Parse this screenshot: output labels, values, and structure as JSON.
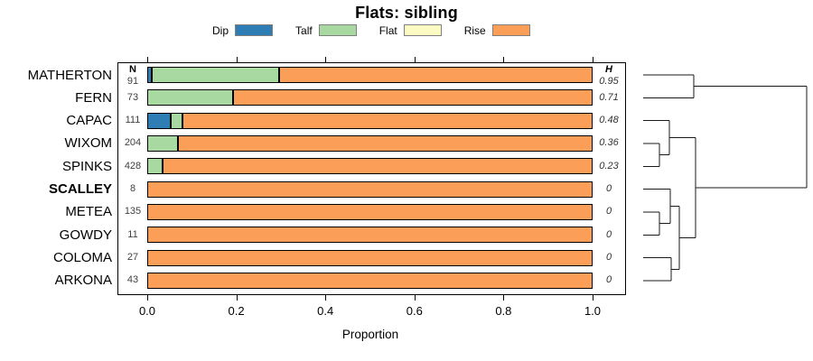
{
  "title": "Flats: sibling",
  "columns": {
    "n_header": "N",
    "h_header": "H"
  },
  "legend": [
    {
      "label": "Dip",
      "color": "#2e7eb5"
    },
    {
      "label": "Talf",
      "color": "#a7d9a0"
    },
    {
      "label": "Flat",
      "color": "#fbfbc3"
    },
    {
      "label": "Rise",
      "color": "#fa9e58"
    }
  ],
  "chart_data": {
    "type": "bar",
    "orientation": "horizontal",
    "stacked": true,
    "title": "Flats: sibling",
    "xlabel": "Proportion",
    "xlim": [
      0,
      1
    ],
    "xtick_values": [
      0,
      0.2,
      0.4,
      0.6,
      0.8,
      1.0
    ],
    "xtick_labels": [
      "0.0",
      "0.2",
      "0.4",
      "0.6",
      "0.8",
      "1.0"
    ],
    "grid": false,
    "legend_position": "top",
    "categories": [
      "MATHERTON",
      "FERN",
      "CAPAC",
      "WIXOM",
      "SPINKS",
      "SCALLEY",
      "METEA",
      "GOWDY",
      "COLOMA",
      "ARKONA"
    ],
    "emphasized_category": "SCALLEY",
    "n_values": [
      "91",
      "73",
      "111",
      "204",
      "428",
      "8",
      "135",
      "11",
      "27",
      "43"
    ],
    "h_values": [
      "0.95",
      "0.71",
      "0.48",
      "0.36",
      "0.23",
      "0",
      "0",
      "0",
      "0",
      "0"
    ],
    "series": [
      {
        "name": "Dip",
        "color": "#2e7eb5",
        "values": [
          0.01,
          0,
          0.053,
          0,
          0,
          0,
          0,
          0,
          0,
          0
        ]
      },
      {
        "name": "Talf",
        "color": "#a7d9a0",
        "values": [
          0.286,
          0.193,
          0.027,
          0.069,
          0.035,
          0,
          0,
          0,
          0,
          0
        ]
      },
      {
        "name": "Flat",
        "color": "#fbfbc3",
        "values": [
          0,
          0,
          0,
          0,
          0,
          0,
          0,
          0,
          0,
          0
        ]
      },
      {
        "name": "Rise",
        "color": "#fa9e58",
        "values": [
          0.704,
          0.807,
          0.92,
          0.931,
          0.965,
          1,
          1,
          1,
          1,
          1
        ]
      }
    ],
    "dendrogram": {
      "description": "hierarchical clustering tree, leaves at left joined rightward",
      "segments": [
        [
          712,
          83.0,
          768,
          83.0
        ],
        [
          712,
          108.3,
          768,
          108.3
        ],
        [
          768,
          83.0,
          768,
          108.3
        ],
        [
          768,
          95.7,
          893,
          95.7
        ],
        [
          712,
          133.7,
          741,
          133.7
        ],
        [
          712,
          159.0,
          730,
          159.0
        ],
        [
          712,
          184.3,
          730,
          184.3
        ],
        [
          730,
          159.0,
          730,
          184.3
        ],
        [
          730,
          171.7,
          741,
          171.7
        ],
        [
          741,
          133.7,
          741,
          171.7
        ],
        [
          741,
          152.7,
          770,
          152.7
        ],
        [
          712,
          209.7,
          742,
          209.7
        ],
        [
          712,
          235.0,
          730,
          235.0
        ],
        [
          712,
          260.3,
          730,
          260.3
        ],
        [
          730,
          235.0,
          730,
          260.3
        ],
        [
          730,
          247.7,
          742,
          247.7
        ],
        [
          742,
          209.7,
          742,
          247.7
        ],
        [
          742,
          228.7,
          752,
          228.7
        ],
        [
          712,
          285.7,
          743,
          285.7
        ],
        [
          712,
          311.0,
          743,
          311.0
        ],
        [
          743,
          285.7,
          743,
          311.0
        ],
        [
          743,
          298.3,
          752,
          298.3
        ],
        [
          752,
          228.7,
          752,
          298.3
        ],
        [
          752,
          263.5,
          770,
          263.5
        ],
        [
          770,
          152.7,
          770,
          263.5
        ],
        [
          770,
          208.1,
          893,
          208.1
        ],
        [
          893,
          95.7,
          893,
          208.1
        ]
      ]
    }
  }
}
